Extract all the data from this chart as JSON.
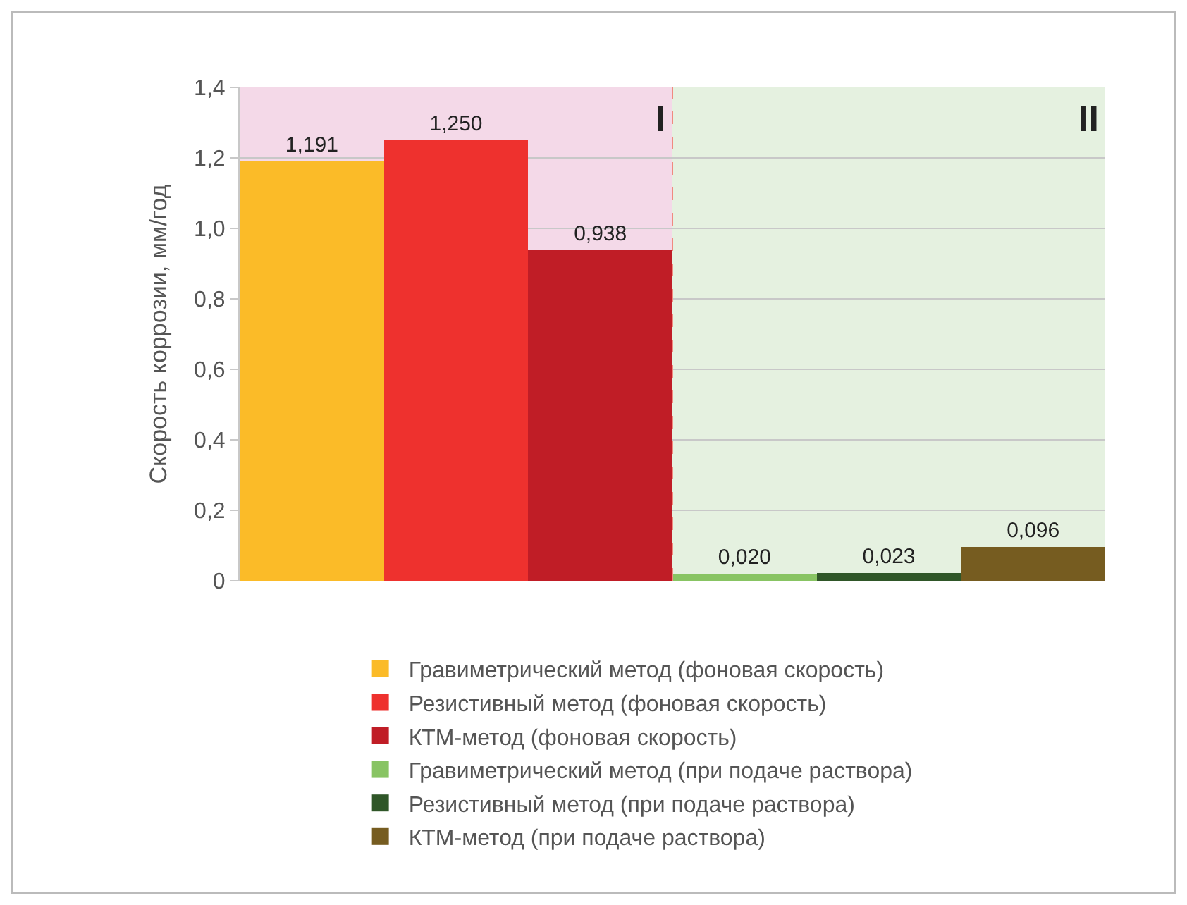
{
  "chart_data": {
    "type": "bar",
    "ylabel": "Скорость коррозии, мм/год",
    "categories": [
      null,
      null,
      null,
      null,
      null,
      null
    ],
    "series": [
      {
        "name": "Гравиметрический метод (фоновая скорость)",
        "color": "#fbbb28",
        "values": [
          1.191,
          null,
          null,
          null,
          null,
          null
        ],
        "value_labels": [
          "1,191",
          null,
          null,
          null,
          null,
          null
        ]
      },
      {
        "name": "Резистивный метод (фоновая скорость)",
        "color": "#ee312e",
        "values": [
          null,
          1.25,
          null,
          null,
          null,
          null
        ],
        "value_labels": [
          null,
          "1,250",
          null,
          null,
          null,
          null
        ]
      },
      {
        "name": "КТМ-метод (фоновая скорость)",
        "color": "#c01d26",
        "values": [
          null,
          null,
          0.938,
          null,
          null,
          null
        ],
        "value_labels": [
          null,
          null,
          "0,938",
          null,
          null,
          null
        ]
      },
      {
        "name": "Гравиметрический метод (при подаче раствора)",
        "color": "#88c463",
        "values": [
          null,
          null,
          null,
          0.02,
          null,
          null
        ],
        "value_labels": [
          null,
          null,
          null,
          "0,020",
          null,
          null
        ]
      },
      {
        "name": "Резистивный метод (при подаче раствора)",
        "color": "#2f5628",
        "values": [
          null,
          null,
          null,
          null,
          0.023,
          null
        ],
        "value_labels": [
          null,
          null,
          null,
          null,
          "0,023",
          null
        ]
      },
      {
        "name": "КТМ-метод (при подаче раствора)",
        "color": "#765c20",
        "values": [
          null,
          null,
          null,
          null,
          null,
          0.096
        ],
        "value_labels": [
          null,
          null,
          null,
          null,
          null,
          "0,096"
        ]
      }
    ],
    "ylim": [
      0,
      1.4
    ],
    "yticks": [
      0,
      {
        "value": 0.2,
        "label": "0,2"
      },
      {
        "value": 0.4,
        "label": "0,4"
      },
      {
        "value": 0.6,
        "label": "0,6"
      },
      {
        "value": 0.8,
        "label": "0,8"
      },
      {
        "value": 1,
        "label": "1,0"
      },
      {
        "value": 1.2,
        "label": "1,2"
      },
      {
        "value": 1.4,
        "label": "1,4"
      }
    ],
    "annotations": [
      "I",
      "II"
    ],
    "grid": "y",
    "legend": "bottom",
    "tick_labels": "y"
  }
}
